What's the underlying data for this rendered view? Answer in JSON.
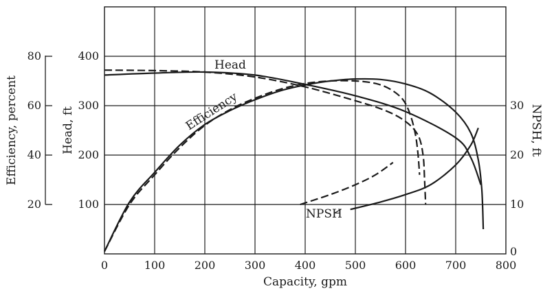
{
  "chart_data": {
    "type": "line",
    "xlabel": "Capacity, gpm",
    "x_ticks": [
      0,
      100,
      200,
      300,
      400,
      500,
      600,
      700,
      800
    ],
    "xlim": [
      0,
      800
    ],
    "ylabel_head": "Head, ft",
    "head_ticks": [
      100,
      200,
      300,
      400
    ],
    "head_lim": [
      0,
      500
    ],
    "ylabel_efficiency": "Efficiency, percent",
    "efficiency_ticks": [
      20,
      40,
      60,
      80
    ],
    "ylabel_npsh": "NPSH, ft",
    "npsh_ticks": [
      0,
      10,
      20,
      30
    ],
    "npsh_lim": [
      0,
      50
    ],
    "grid": true,
    "annotations": {
      "head": "Head",
      "efficiency": "Efficiency",
      "npsh": "NPSH"
    },
    "series": [
      {
        "label_key": "head",
        "axis": "head",
        "style": "solid",
        "points": [
          [
            0,
            362
          ],
          [
            100,
            366
          ],
          [
            200,
            368
          ],
          [
            300,
            362
          ],
          [
            400,
            343
          ],
          [
            500,
            320
          ],
          [
            600,
            288
          ],
          [
            700,
            235
          ],
          [
            730,
            195
          ],
          [
            750,
            140
          ]
        ]
      },
      {
        "label_key": "head",
        "axis": "head",
        "style": "dashed",
        "points": [
          [
            0,
            372
          ],
          [
            100,
            371
          ],
          [
            200,
            368
          ],
          [
            300,
            358
          ],
          [
            400,
            338
          ],
          [
            500,
            310
          ],
          [
            560,
            290
          ],
          [
            600,
            268
          ],
          [
            625,
            240
          ],
          [
            635,
            200
          ],
          [
            638,
            150
          ],
          [
            640,
            100
          ]
        ]
      },
      {
        "label_key": "efficiency",
        "axis": "head",
        "style": "solid",
        "points": [
          [
            0,
            5
          ],
          [
            50,
            105
          ],
          [
            100,
            165
          ],
          [
            150,
            220
          ],
          [
            200,
            262
          ],
          [
            250,
            290
          ],
          [
            300,
            312
          ],
          [
            350,
            330
          ],
          [
            400,
            342
          ],
          [
            450,
            350
          ],
          [
            500,
            354
          ],
          [
            550,
            353
          ],
          [
            600,
            344
          ],
          [
            650,
            325
          ],
          [
            700,
            287
          ],
          [
            730,
            245
          ],
          [
            745,
            190
          ],
          [
            752,
            130
          ],
          [
            755,
            50
          ]
        ]
      },
      {
        "label_key": "efficiency",
        "axis": "head",
        "style": "dashed",
        "points": [
          [
            0,
            5
          ],
          [
            50,
            100
          ],
          [
            100,
            160
          ],
          [
            150,
            215
          ],
          [
            200,
            260
          ],
          [
            250,
            292
          ],
          [
            300,
            315
          ],
          [
            350,
            333
          ],
          [
            400,
            345
          ],
          [
            450,
            350
          ],
          [
            500,
            350
          ],
          [
            540,
            345
          ],
          [
            570,
            333
          ],
          [
            595,
            312
          ],
          [
            610,
            280
          ],
          [
            620,
            240
          ],
          [
            625,
            200
          ],
          [
            628,
            160
          ]
        ]
      },
      {
        "label_key": "npsh",
        "axis": "npsh",
        "style": "solid",
        "points": [
          [
            490,
            9
          ],
          [
            550,
            10.5
          ],
          [
            600,
            12
          ],
          [
            650,
            14
          ],
          [
            700,
            18
          ],
          [
            730,
            22
          ],
          [
            745,
            25.5
          ]
        ]
      },
      {
        "label_key": "npsh",
        "axis": "npsh",
        "style": "dashed",
        "points": [
          [
            390,
            10
          ],
          [
            450,
            12
          ],
          [
            500,
            14
          ],
          [
            540,
            16
          ],
          [
            575,
            18.5
          ]
        ]
      }
    ]
  }
}
